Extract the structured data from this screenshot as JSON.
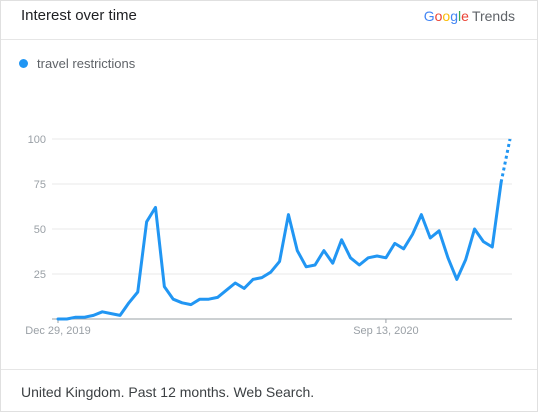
{
  "header": {
    "title": "Interest over time",
    "brand": {
      "letters": [
        "G",
        "o",
        "o",
        "g",
        "l",
        "e"
      ],
      "suffix": "Trends"
    }
  },
  "legend": {
    "color": "#2196f3",
    "label": "travel restrictions"
  },
  "footer": {
    "text": "United Kingdom. Past 12 months. Web Search."
  },
  "chart_data": {
    "type": "line",
    "series": [
      {
        "name": "travel restrictions",
        "color": "#2196f3",
        "values": [
          0,
          0,
          1,
          1,
          2,
          4,
          3,
          2,
          9,
          15,
          54,
          62,
          18,
          11,
          9,
          8,
          11,
          11,
          12,
          16,
          20,
          17,
          22,
          23,
          26,
          32,
          58,
          38,
          29,
          30,
          38,
          31,
          44,
          34,
          30,
          34,
          35,
          34,
          42,
          39,
          47,
          58,
          45,
          49,
          34,
          22,
          33,
          50,
          43,
          40,
          76,
          100
        ],
        "partial_from_index": 50
      }
    ],
    "x_tick_labels": [
      {
        "index": 0,
        "label": "Dec 29, 2019"
      },
      {
        "index": 37,
        "label": "Sep 13, 2020"
      }
    ],
    "y_ticks": [
      25,
      50,
      75,
      100
    ],
    "ylim": [
      0,
      100
    ],
    "grid": true
  }
}
